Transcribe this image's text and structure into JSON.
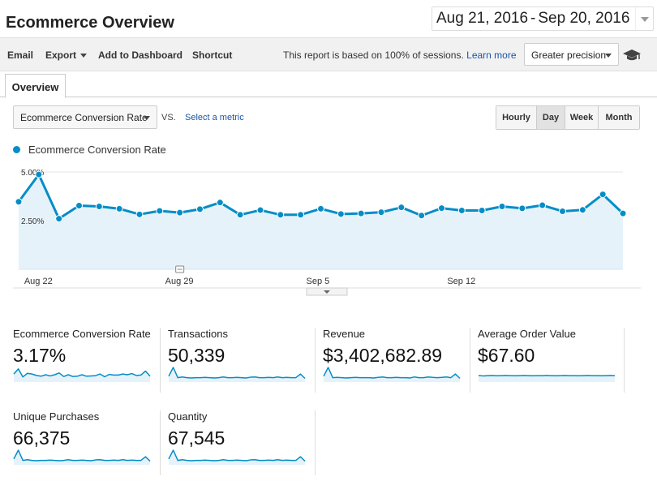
{
  "header": {
    "title": "Ecommerce Overview",
    "date_start": "Aug 21, 2016",
    "date_sep": "-",
    "date_end": "Sep 20, 2016"
  },
  "toolbar": {
    "email": "Email",
    "export": "Export",
    "add_to_dashboard": "Add to Dashboard",
    "shortcut": "Shortcut",
    "report_note": "This report is based on 100% of sessions.",
    "learn_more": "Learn more",
    "precision": "Greater precision"
  },
  "tabs": [
    {
      "label": "Overview",
      "active": true
    }
  ],
  "controls": {
    "metric": "Ecommerce Conversion Rate",
    "vs": "VS.",
    "select_metric": "Select a metric",
    "granularity": [
      {
        "label": "Hourly",
        "active": false
      },
      {
        "label": "Day",
        "active": true
      },
      {
        "label": "Week",
        "active": false
      },
      {
        "label": "Month",
        "active": false
      }
    ]
  },
  "chart_data": {
    "type": "area",
    "title": "",
    "series": [
      {
        "name": "Ecommerce Conversion Rate",
        "color": "#058dc7",
        "values": [
          3.47,
          4.87,
          2.6,
          3.27,
          3.23,
          3.11,
          2.82,
          3.0,
          2.91,
          3.09,
          3.43,
          2.8,
          3.04,
          2.8,
          2.8,
          3.11,
          2.84,
          2.87,
          2.93,
          3.18,
          2.76,
          3.14,
          3.02,
          3.02,
          3.23,
          3.13,
          3.29,
          2.98,
          3.05,
          3.85,
          2.87
        ]
      }
    ],
    "x_tick_labels": [
      {
        "index": 1,
        "label": "Aug 22"
      },
      {
        "index": 8,
        "label": "Aug 29"
      },
      {
        "index": 15,
        "label": "Sep 5"
      },
      {
        "index": 22,
        "label": "Sep 12"
      }
    ],
    "y_tick_labels": [
      "5.00%",
      "2.50%"
    ],
    "y_ticks": [
      5.0,
      2.5
    ],
    "ylim": [
      0,
      5.5
    ],
    "grid": true,
    "annotation_marker_index": 8
  },
  "scorecards": [
    {
      "label": "Ecommerce Conversion Rate",
      "value": "3.17%",
      "spark": [
        0.55,
        0.9,
        0.35,
        0.6,
        0.55,
        0.45,
        0.4,
        0.5,
        0.42,
        0.5,
        0.62,
        0.38,
        0.5,
        0.38,
        0.4,
        0.5,
        0.4,
        0.42,
        0.44,
        0.55,
        0.36,
        0.52,
        0.48,
        0.48,
        0.55,
        0.5,
        0.58,
        0.45,
        0.48,
        0.75,
        0.4
      ]
    },
    {
      "label": "Transactions",
      "value": "50,339",
      "spark": [
        0.4,
        1.0,
        0.3,
        0.35,
        0.3,
        0.28,
        0.3,
        0.3,
        0.32,
        0.3,
        0.28,
        0.3,
        0.35,
        0.3,
        0.3,
        0.32,
        0.3,
        0.28,
        0.33,
        0.35,
        0.3,
        0.3,
        0.32,
        0.3,
        0.35,
        0.3,
        0.32,
        0.3,
        0.3,
        0.55,
        0.25
      ]
    },
    {
      "label": "Revenue",
      "value": "$3,402,682.89",
      "spark": [
        0.4,
        1.0,
        0.3,
        0.32,
        0.3,
        0.28,
        0.3,
        0.32,
        0.3,
        0.3,
        0.3,
        0.28,
        0.32,
        0.35,
        0.3,
        0.3,
        0.32,
        0.3,
        0.3,
        0.28,
        0.35,
        0.3,
        0.3,
        0.35,
        0.32,
        0.3,
        0.32,
        0.35,
        0.3,
        0.55,
        0.25
      ]
    },
    {
      "label": "Average Order Value",
      "value": "$67.60",
      "spark": [
        0.45,
        0.42,
        0.44,
        0.45,
        0.43,
        0.44,
        0.45,
        0.44,
        0.43,
        0.44,
        0.45,
        0.44,
        0.43,
        0.44,
        0.44,
        0.45,
        0.44,
        0.43,
        0.44,
        0.45,
        0.44,
        0.44,
        0.43,
        0.44,
        0.45,
        0.44,
        0.44,
        0.43,
        0.44,
        0.45,
        0.44
      ]
    },
    {
      "label": "Unique Purchases",
      "value": "66,375",
      "spark": [
        0.4,
        1.0,
        0.3,
        0.35,
        0.3,
        0.28,
        0.3,
        0.3,
        0.32,
        0.3,
        0.28,
        0.3,
        0.35,
        0.3,
        0.3,
        0.32,
        0.3,
        0.28,
        0.33,
        0.35,
        0.3,
        0.3,
        0.32,
        0.3,
        0.35,
        0.3,
        0.32,
        0.3,
        0.3,
        0.55,
        0.25
      ]
    },
    {
      "label": "Quantity",
      "value": "67,545",
      "spark": [
        0.4,
        1.0,
        0.3,
        0.35,
        0.3,
        0.28,
        0.3,
        0.3,
        0.32,
        0.3,
        0.28,
        0.3,
        0.35,
        0.3,
        0.3,
        0.32,
        0.3,
        0.28,
        0.33,
        0.35,
        0.3,
        0.3,
        0.32,
        0.3,
        0.35,
        0.3,
        0.32,
        0.3,
        0.3,
        0.55,
        0.25
      ]
    }
  ],
  "colors": {
    "accent": "#058dc7",
    "area_fill": "#e6f2fa",
    "link": "#1a55a7"
  },
  "icons": {
    "education": "graduation-cap-icon"
  }
}
